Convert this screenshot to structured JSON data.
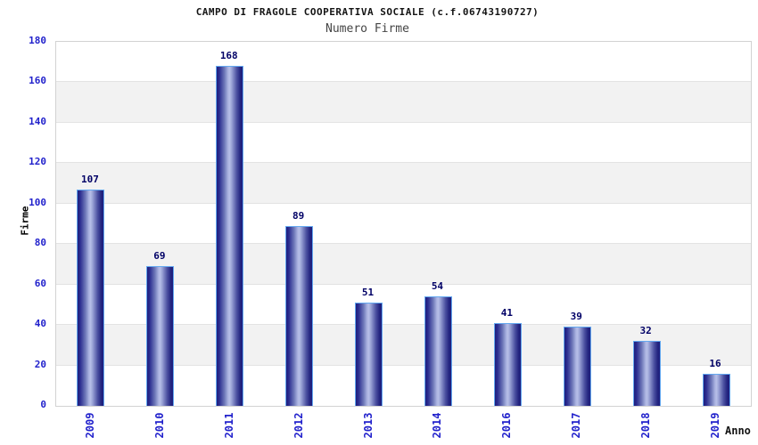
{
  "header": {
    "title": "CAMPO DI FRAGOLE COOPERATIVA SOCIALE (c.f.06743190727)",
    "subtitle": "Numero Firme"
  },
  "chart_data": {
    "type": "bar",
    "title": "CAMPO DI FRAGOLE COOPERATIVA SOCIALE (c.f.06743190727)",
    "subtitle": "Numero Firme",
    "xlabel": "Anno",
    "ylabel": "Firme",
    "categories": [
      "2009",
      "2010",
      "2011",
      "2012",
      "2013",
      "2014",
      "2016",
      "2017",
      "2018",
      "2019"
    ],
    "values": [
      107,
      69,
      168,
      89,
      51,
      54,
      41,
      39,
      32,
      16
    ],
    "ylim": [
      0,
      180
    ],
    "ytick_step": 20,
    "yticks": [
      0,
      20,
      40,
      60,
      80,
      100,
      120,
      140,
      160,
      180
    ],
    "legend": "none",
    "grid": "horizontal-bands-alternating",
    "colors": {
      "tick_label": "#2222cc",
      "value_label": "#000066",
      "bar_border": "#63a8f0",
      "bar_dark": "#1e1f7e",
      "bar_light": "#b7bfe8",
      "band_gray": "#f2f2f2",
      "grid_line": "#e3e3e3",
      "frame": "#d2d2d2",
      "title_text": "#141414",
      "subtitle_text": "#454545"
    }
  }
}
